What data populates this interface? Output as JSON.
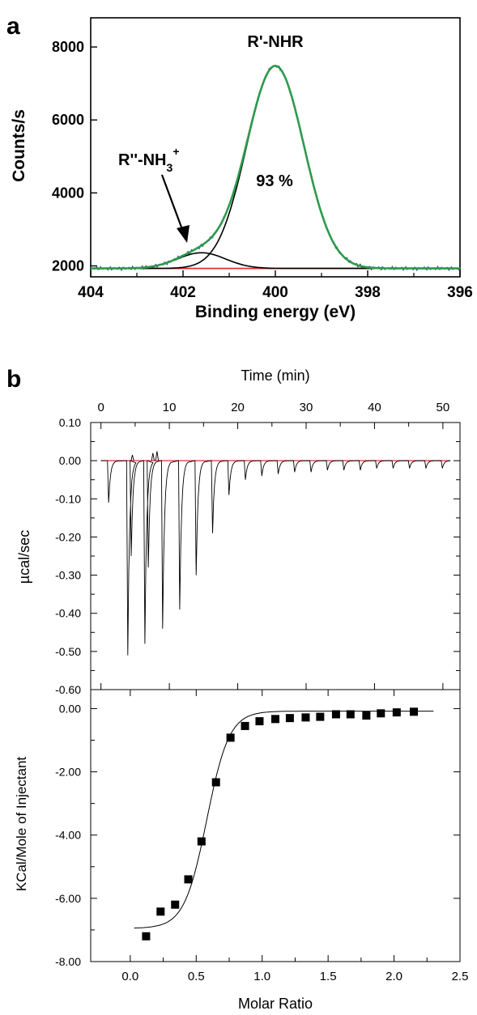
{
  "panel_a_letter": "a",
  "panel_b_letter": "b",
  "chart_data": [
    {
      "type": "line",
      "panel": "a",
      "xlabel": "Binding energy (eV)",
      "ylabel": "Counts/s",
      "xlim": [
        404,
        396
      ],
      "ylim": [
        1700,
        8800
      ],
      "x_reversed": true,
      "xticks": [
        404,
        402,
        400,
        398,
        396
      ],
      "yticks": [
        2000,
        4000,
        6000,
        8000
      ],
      "annotations": {
        "peak_main": "R'-NHR",
        "peak_minor": "R''-NH3+",
        "minor_base": "R''-NH",
        "minor_sub": "3",
        "minor_sup": "+",
        "percent": "93 %"
      },
      "background_level": 1930,
      "components": [
        {
          "center": 400.0,
          "amplitude": 5550,
          "sigma": 0.62
        },
        {
          "center": 401.6,
          "amplitude": 430,
          "sigma": 0.52
        }
      ],
      "series_colors": {
        "envelope": "#2e9a4c",
        "data": "#2a4d9a",
        "components": "#000000",
        "background": "#e03030"
      }
    },
    {
      "type": "line",
      "panel": "b-top",
      "xlabel": "Time (min)",
      "ylabel": "µcal/sec",
      "xlim": [
        -1.5,
        52.5
      ],
      "ylim": [
        -0.6,
        0.1
      ],
      "xticks": [
        0,
        10,
        20,
        30,
        40,
        50
      ],
      "xtick_labels": [
        "0",
        "10",
        "20",
        "30",
        "40",
        "50"
      ],
      "yticks": [
        0.1,
        0.0,
        -0.1,
        -0.2,
        -0.3,
        -0.4,
        -0.5,
        -0.6
      ],
      "ytick_labels": [
        "0.10",
        "0.00",
        "-0.10",
        "-0.20",
        "-0.30",
        "-0.40",
        "-0.50",
        "-0.60"
      ],
      "baseline": 0.0,
      "injections": [
        {
          "t": 1.0,
          "min": -0.11
        },
        {
          "t": 3.8,
          "min": -0.51
        },
        {
          "t": 4.3,
          "min": -0.25
        },
        {
          "t": 6.3,
          "min": -0.48
        },
        {
          "t": 6.8,
          "min": -0.28
        },
        {
          "t": 8.9,
          "min": -0.44
        },
        {
          "t": 11.4,
          "min": -0.39
        },
        {
          "t": 13.8,
          "min": -0.3
        },
        {
          "t": 16.2,
          "min": -0.19
        },
        {
          "t": 18.6,
          "min": -0.09
        },
        {
          "t": 21.0,
          "min": -0.05
        },
        {
          "t": 23.4,
          "min": -0.04
        },
        {
          "t": 25.8,
          "min": -0.035
        },
        {
          "t": 28.2,
          "min": -0.03
        },
        {
          "t": 30.6,
          "min": -0.03
        },
        {
          "t": 33.0,
          "min": -0.025
        },
        {
          "t": 35.4,
          "min": -0.025
        },
        {
          "t": 37.8,
          "min": -0.025
        },
        {
          "t": 40.2,
          "min": -0.02
        },
        {
          "t": 42.6,
          "min": -0.02
        },
        {
          "t": 45.0,
          "min": -0.02
        },
        {
          "t": 47.4,
          "min": -0.02
        },
        {
          "t": 49.8,
          "min": -0.02
        }
      ],
      "spikes_up": [
        {
          "t": 4.6,
          "max": 0.015
        },
        {
          "t": 7.6,
          "max": 0.02
        },
        {
          "t": 8.2,
          "max": 0.025
        }
      ],
      "series_colors": {
        "trace": "#000000",
        "baseline": "#e03030"
      }
    },
    {
      "type": "scatter",
      "panel": "b-bottom",
      "xlabel": "Molar Ratio",
      "ylabel": "KCal/Mole of Injectant",
      "xlim": [
        -0.3,
        2.5
      ],
      "ylim": [
        -8.0,
        0.6
      ],
      "xticks": [
        0.0,
        0.5,
        1.0,
        1.5,
        2.0,
        2.5
      ],
      "xtick_labels": [
        "0.0",
        "0.5",
        "1.0",
        "1.5",
        "2.0",
        "2.5"
      ],
      "yticks": [
        0.0,
        -2.0,
        -4.0,
        -6.0,
        -8.0
      ],
      "ytick_labels": [
        "0.00",
        "-2.00",
        "-4.00",
        "-6.00",
        "-8.00"
      ],
      "points": [
        {
          "x": 0.12,
          "y": -7.2
        },
        {
          "x": 0.23,
          "y": -6.42
        },
        {
          "x": 0.34,
          "y": -6.2
        },
        {
          "x": 0.44,
          "y": -5.4
        },
        {
          "x": 0.54,
          "y": -4.2
        },
        {
          "x": 0.65,
          "y": -2.33
        },
        {
          "x": 0.76,
          "y": -0.92
        },
        {
          "x": 0.87,
          "y": -0.55
        },
        {
          "x": 0.98,
          "y": -0.4
        },
        {
          "x": 1.1,
          "y": -0.33
        },
        {
          "x": 1.21,
          "y": -0.3
        },
        {
          "x": 1.33,
          "y": -0.28
        },
        {
          "x": 1.44,
          "y": -0.26
        },
        {
          "x": 1.56,
          "y": -0.18
        },
        {
          "x": 1.67,
          "y": -0.18
        },
        {
          "x": 1.79,
          "y": -0.22
        },
        {
          "x": 1.9,
          "y": -0.15
        },
        {
          "x": 2.02,
          "y": -0.12
        },
        {
          "x": 2.15,
          "y": -0.1
        }
      ],
      "fit": {
        "low": -6.95,
        "high": -0.08,
        "midpoint": 0.58,
        "width": 0.085,
        "x_start": 0.03,
        "x_end": 2.3
      },
      "series_colors": {
        "points": "#000000",
        "fit": "#000000"
      }
    }
  ]
}
